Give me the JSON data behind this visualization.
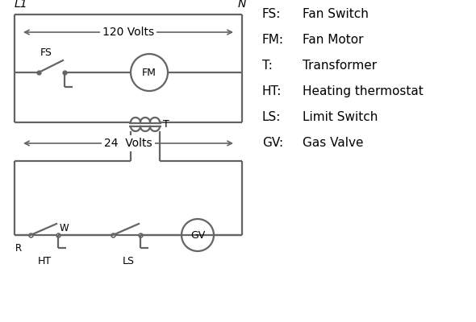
{
  "line_color": "#646464",
  "text_color": "#000000",
  "bg_color": "#ffffff",
  "legend": [
    [
      "FS:",
      "Fan Switch"
    ],
    [
      "FM:",
      "Fan Motor"
    ],
    [
      "T:",
      "Transformer"
    ],
    [
      "HT:",
      "Heating thermostat"
    ],
    [
      "LS:",
      "Limit Switch"
    ],
    [
      "GV:",
      "Gas Valve"
    ]
  ],
  "volts_120_label": "120 Volts",
  "volts_24_label": "24  Volts",
  "L1_label": "L1",
  "N_label": "N"
}
